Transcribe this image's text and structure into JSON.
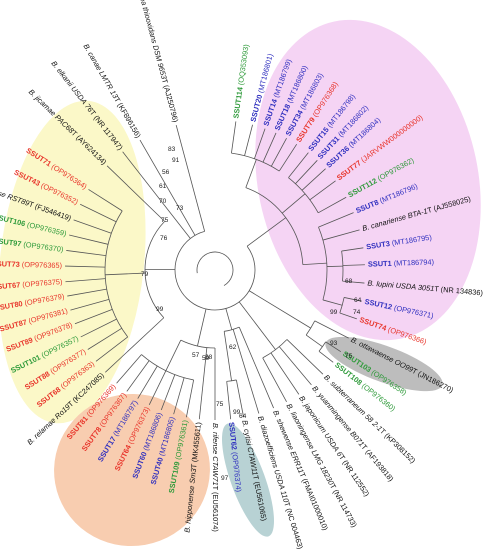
{
  "colors": {
    "red": "#e8352b",
    "green": "#2e9a3a",
    "blue": "#2f2fbf",
    "black": "#111111",
    "yellow_bg": "#fbf8c8",
    "pink_bg": "#f5d4f4",
    "orange_bg": "#f8cdb0",
    "grey_bg": "#bdbdbd",
    "teal_bg": "#b8d2d4"
  },
  "leaves": [
    {
      "id": "ssut114",
      "strain": "SSUT114",
      "acc": " (OQ353093)",
      "color": "green"
    },
    {
      "id": "ssut20",
      "strain": "SSUT20",
      "acc": " (MT186801)",
      "color": "blue"
    },
    {
      "id": "ssut14",
      "strain": "SSUT14",
      "acc": " (MT186799)",
      "color": "blue"
    },
    {
      "id": "ssut18",
      "strain": "SSUT18",
      "acc": " (MT186800)",
      "color": "blue"
    },
    {
      "id": "ssut34",
      "strain": "SSUT34",
      "acc": " (MT186803)",
      "color": "blue"
    },
    {
      "id": "ssut79",
      "strain": "SSUT79",
      "acc": " (OP976368)",
      "color": "red"
    },
    {
      "id": "ssut15",
      "strain": "SSUT15",
      "acc": " (MT186798)",
      "color": "blue"
    },
    {
      "id": "ssut31",
      "strain": "SSUT31",
      "acc": " (MT186802)",
      "color": "blue"
    },
    {
      "id": "ssut36",
      "strain": "SSUT36",
      "acc": " (MT186804)",
      "color": "blue"
    },
    {
      "id": "ssut77",
      "strain": "SSUT77",
      "acc": " (JARVWW000000000)",
      "color": "red"
    },
    {
      "id": "ssut112",
      "strain": "SSUT112",
      "acc": " (OP976362)",
      "color": "green"
    },
    {
      "id": "ssut8",
      "strain": "SSUT8",
      "acc": " (MT186796)",
      "color": "blue"
    },
    {
      "id": "bcanariense",
      "strain": "B. canariense BTA-1",
      "acc": "T (AJ558025)",
      "color": "black"
    },
    {
      "id": "ssut3",
      "strain": "SSUT3",
      "acc": " (MT186795)",
      "color": "blue"
    },
    {
      "id": "ssut1",
      "strain": "SSUT1",
      "acc": " (MT186794)",
      "color": "blue"
    },
    {
      "id": "blupini",
      "strain": "B. lupini USDA 3051",
      "acc": "T (NR 134836)",
      "color": "black"
    },
    {
      "id": "ssut12",
      "strain": "SSUT12",
      "acc": " (OP976371)",
      "color": "blue"
    },
    {
      "id": "ssut74",
      "strain": "SSUT74",
      "acc": " (OP976366)",
      "color": "red"
    },
    {
      "id": "bottawaense",
      "strain": "B. ottawaense OO99",
      "acc": "T (JN186270)",
      "color": "black"
    },
    {
      "id": "ssut103",
      "strain": "SSUT103",
      "acc": " (OP976358)",
      "color": "green"
    },
    {
      "id": "ssut108",
      "strain": "SSUT108",
      "acc": " (OP976360)",
      "color": "green"
    },
    {
      "id": "bsubterraneum",
      "strain": "B. subterraneum 58 2-1",
      "acc": "T (KP308152)",
      "color": "black"
    },
    {
      "id": "byuanmingense",
      "strain": "B. yuanmingense B071",
      "acc": "T (AF193818)",
      "color": "black"
    },
    {
      "id": "bjaponicum",
      "strain": "B. japonicum USDA 6",
      "acc": "T (NR 112552)",
      "color": "black"
    },
    {
      "id": "bliaoningense",
      "strain": "B. liaoningense LMG 18230",
      "acc": "T (NR 114733)",
      "color": "black"
    },
    {
      "id": "bshewense",
      "strain": "B. shewense ERR11",
      "acc": "T (FMAI01000010)",
      "color": "black"
    },
    {
      "id": "bdiazoefficiens",
      "strain": "B. diazoefficiens USDA 110",
      "acc": "T (NC 004463)",
      "color": "black"
    },
    {
      "id": "bcytisi",
      "strain": "B. cytisi CTAW11",
      "acc": "T (EU561065)",
      "color": "black"
    },
    {
      "id": "ssut62",
      "strain": "SSUT62",
      "acc": " (OP976374)",
      "color": "blue"
    },
    {
      "id": "brifense",
      "strain": "B. rifense CTAW71",
      "acc": "T (EU561074)",
      "color": "black"
    },
    {
      "id": "bhipponense",
      "strain": "B. hipponense Sm3",
      "acc": "T (MK455611)",
      "color": "black"
    },
    {
      "id": "ssut109",
      "strain": "SSUT109",
      "acc": " (OP976361)",
      "color": "green"
    },
    {
      "id": "ssut40",
      "strain": "SSUT40",
      "acc": " (MT186805)",
      "color": "blue"
    },
    {
      "id": "ssut60",
      "strain": "SSUT60",
      "acc": " (MT186806)",
      "color": "blue"
    },
    {
      "id": "ssut64",
      "strain": "SSUT64",
      "acc": " (OP976373)",
      "color": "red"
    },
    {
      "id": "ssut17",
      "strain": "SSUT17",
      "acc": " (MT186797)",
      "color": "blue"
    },
    {
      "id": "ssut78",
      "strain": "SSUT78",
      "acc": " (OP976367)",
      "color": "red"
    },
    {
      "id": "ssut81",
      "strain": "SSUT81",
      "acc": " (OP976369)",
      "color": "red"
    },
    {
      "id": "brelamae",
      "strain": "B. relamae Ro19",
      "acc": "T (KC247085)",
      "color": "black"
    },
    {
      "id": "ssut68",
      "strain": "SSUT68",
      "acc": " (OP976363)",
      "color": "red"
    },
    {
      "id": "ssut88",
      "strain": "SSUT88",
      "acc": " (OP976377)",
      "color": "red"
    },
    {
      "id": "ssut101",
      "strain": "SSUT101",
      "acc": " (OP976357)",
      "color": "green"
    },
    {
      "id": "ssut89",
      "strain": "SSUT89",
      "acc": " (OP976378)",
      "color": "red"
    },
    {
      "id": "ssut87",
      "strain": "SSUT87",
      "acc": " (OP976381)",
      "color": "red"
    },
    {
      "id": "ssut80",
      "strain": "SSUT80",
      "acc": " (OP976379)",
      "color": "red"
    },
    {
      "id": "ssut67",
      "strain": "SSUT67",
      "acc": " (OP976375)",
      "color": "red"
    },
    {
      "id": "ssut73",
      "strain": "SSUT73",
      "acc": " (OP976365)",
      "color": "red"
    },
    {
      "id": "ssut97",
      "strain": "SSUT97",
      "acc": " (OP976370)",
      "color": "green"
    },
    {
      "id": "ssut106",
      "strain": "SSUT106",
      "acc": " (OP976359)",
      "color": "green"
    },
    {
      "id": "balgeriense",
      "strain": "B. algeriense RST89",
      "acc": "T (FJ546419)",
      "color": "black"
    },
    {
      "id": "ssut43",
      "strain": "SSUT43",
      "acc": " (OP976352)",
      "color": "red"
    },
    {
      "id": "ssut71",
      "strain": "SSUT71",
      "acc": " (OP976364)",
      "color": "red"
    },
    {
      "id": "bjicamae",
      "strain": "B. jicamae PAC68",
      "acc": "T (AY624134)",
      "color": "black"
    },
    {
      "id": "belkanii",
      "strain": "B. elkanii USDA 76",
      "acc": "T (NR 117947)",
      "color": "black"
    },
    {
      "id": "bcanae",
      "strain": "B. canae LMTR 13",
      "acc": "T (KF896156)",
      "color": "black"
    },
    {
      "id": "bosedax",
      "strain": "Bosea thiooxidans DSM 9653",
      "acc": "T (AJ250796)",
      "color": "black"
    }
  ],
  "bootstrap": [
    "83",
    "91",
    "56",
    "61",
    "70",
    "73",
    "75",
    "76",
    "79",
    "99",
    "99",
    "74",
    "64",
    "68",
    "93",
    "75",
    "62",
    "57",
    "59",
    "99",
    "64",
    "97",
    "75",
    "68"
  ]
}
